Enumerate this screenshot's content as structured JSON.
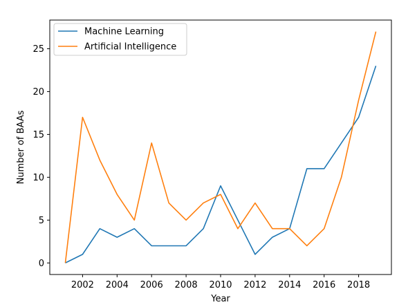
{
  "chart_data": {
    "type": "line",
    "title": "",
    "xlabel": "Year",
    "ylabel": "Number of BAAs",
    "x": [
      2001,
      2002,
      2003,
      2004,
      2005,
      2006,
      2007,
      2008,
      2009,
      2010,
      2011,
      2012,
      2013,
      2014,
      2015,
      2016,
      2017,
      2018,
      2019
    ],
    "xlim": [
      2000.1,
      2019.9
    ],
    "ylim": [
      -1.35,
      28.35
    ],
    "xticks": [
      2002,
      2004,
      2006,
      2008,
      2010,
      2012,
      2014,
      2016,
      2018
    ],
    "yticks": [
      0,
      5,
      10,
      15,
      20,
      25
    ],
    "grid": false,
    "legend_position": "top-left",
    "series": [
      {
        "name": "Machine Learning",
        "color": "#1f77b4",
        "values": [
          0,
          1,
          4,
          3,
          4,
          2,
          2,
          2,
          4,
          9,
          5,
          1,
          3,
          4,
          11,
          11,
          14,
          17,
          23
        ]
      },
      {
        "name": "Artificial Intelligence",
        "color": "#ff7f0e",
        "values": [
          0,
          17,
          12,
          8,
          5,
          14,
          7,
          5,
          7,
          8,
          4,
          7,
          4,
          4,
          2,
          4,
          10,
          19,
          27
        ]
      }
    ]
  }
}
